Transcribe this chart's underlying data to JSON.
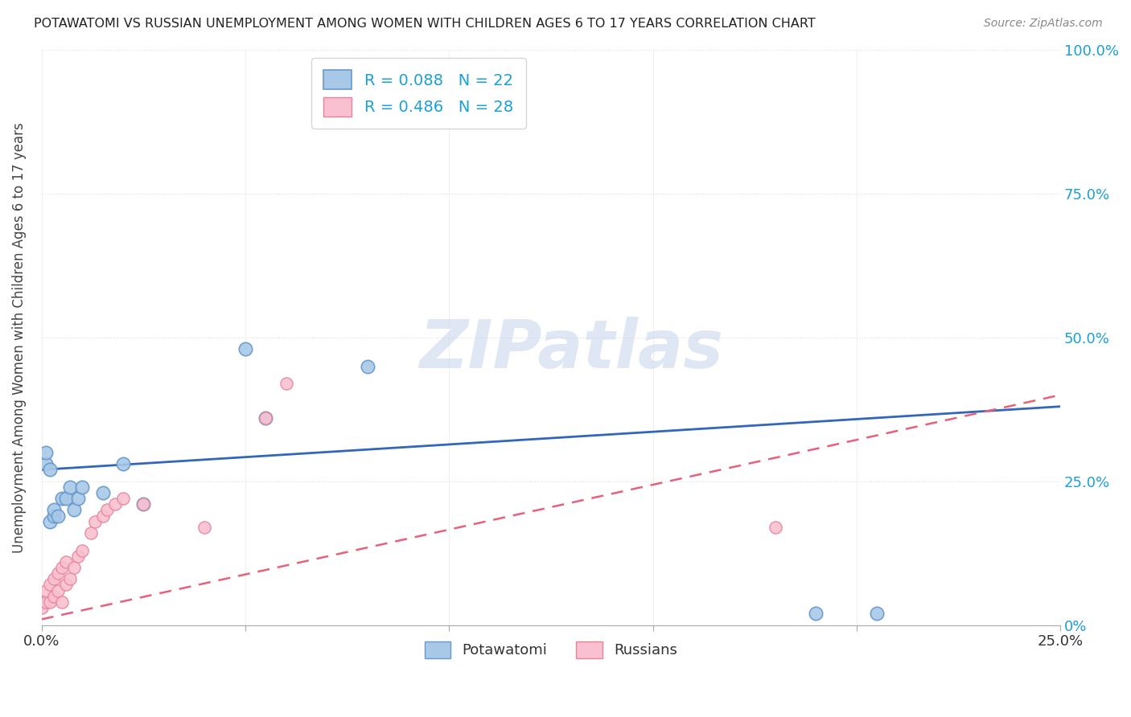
{
  "title": "POTAWATOMI VS RUSSIAN UNEMPLOYMENT AMONG WOMEN WITH CHILDREN AGES 6 TO 17 YEARS CORRELATION CHART",
  "source": "Source: ZipAtlas.com",
  "ylabel": "Unemployment Among Women with Children Ages 6 to 17 years",
  "potawatomi_color": "#a8c8e8",
  "potawatomi_edge_color": "#6699cc",
  "russian_color": "#f8c0d0",
  "russian_edge_color": "#e8849a",
  "potawatomi_line_color": "#3366bb",
  "russian_line_color": "#e8607a",
  "legend_text_color": "#1aa0d8",
  "right_axis_color": "#1aa0d8",
  "R_potawatomi": 0.088,
  "N_potawatomi": 22,
  "R_russian": 0.486,
  "N_russian": 28,
  "xlim": [
    0.0,
    0.25
  ],
  "ylim": [
    0.0,
    1.0
  ],
  "potawatomi_x": [
    0.0,
    0.001,
    0.001,
    0.002,
    0.002,
    0.003,
    0.003,
    0.004,
    0.005,
    0.006,
    0.007,
    0.008,
    0.009,
    0.01,
    0.015,
    0.02,
    0.025,
    0.05,
    0.055,
    0.08,
    0.19,
    0.205
  ],
  "potawatomi_y": [
    0.04,
    0.28,
    0.3,
    0.27,
    0.18,
    0.19,
    0.2,
    0.19,
    0.22,
    0.22,
    0.24,
    0.2,
    0.22,
    0.24,
    0.23,
    0.28,
    0.21,
    0.48,
    0.36,
    0.45,
    0.02,
    0.02
  ],
  "russian_x": [
    0.0,
    0.001,
    0.001,
    0.002,
    0.002,
    0.003,
    0.003,
    0.004,
    0.004,
    0.005,
    0.005,
    0.006,
    0.006,
    0.007,
    0.008,
    0.009,
    0.01,
    0.012,
    0.013,
    0.015,
    0.016,
    0.018,
    0.02,
    0.025,
    0.04,
    0.055,
    0.06,
    0.18
  ],
  "russian_y": [
    0.03,
    0.04,
    0.06,
    0.04,
    0.07,
    0.05,
    0.08,
    0.06,
    0.09,
    0.04,
    0.1,
    0.07,
    0.11,
    0.08,
    0.1,
    0.12,
    0.13,
    0.16,
    0.18,
    0.19,
    0.2,
    0.21,
    0.22,
    0.21,
    0.17,
    0.36,
    0.42,
    0.17
  ],
  "grid_color": "#dddddd",
  "grid_linestyle": "dotted"
}
